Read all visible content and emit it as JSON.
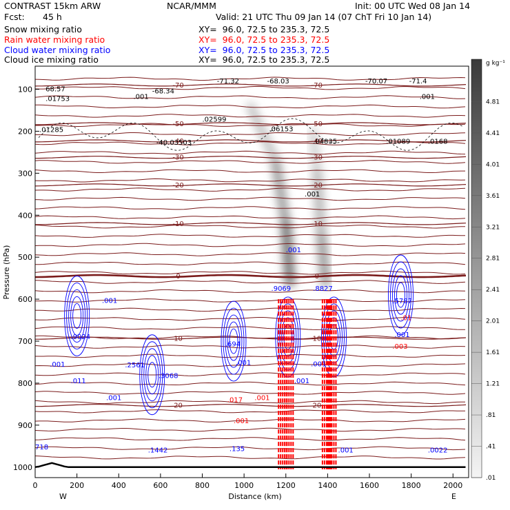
{
  "header": {
    "model": "CONTRAST 15km ARW",
    "center": "NCAR/MMM",
    "init": "Init: 00 UTC Wed 08 Jan 14",
    "fcst_label": "Fcst:",
    "fcst_value": "45 h",
    "valid": "Valid: 21 UTC Thu 09 Jan 14 (07 ChT Fri 10 Jan 14)"
  },
  "legend": [
    {
      "name": "Snow mixing ratio",
      "xy": "XY=  96.0, 72.5 to 235.3, 72.5",
      "color": "#000000"
    },
    {
      "name": "Rain water mixing ratio",
      "xy": "XY=  96.0, 72.5 to 235.3, 72.5",
      "color": "#ff0000"
    },
    {
      "name": "Cloud water mixing ratio",
      "xy": "XY=  96.0, 72.5 to 235.3, 72.5",
      "color": "#0000ff"
    },
    {
      "name": "Cloud ice mixing ratio",
      "xy": "XY=  96.0, 72.5 to 235.3, 72.5",
      "color": "#000000"
    }
  ],
  "chart_data": {
    "type": "cross-section",
    "xlabel": "Distance (km)",
    "ylabel": "Pressure (hPa)",
    "x_ticks": [
      0,
      200,
      400,
      600,
      800,
      1000,
      1200,
      1400,
      1600,
      1800,
      2000
    ],
    "y_ticks": [
      100,
      200,
      300,
      400,
      500,
      600,
      700,
      800,
      900,
      1000
    ],
    "xlim": [
      0,
      2075
    ],
    "ylim": [
      1025,
      45
    ],
    "west_label": "W",
    "east_label": "E",
    "colorbar": {
      "unit": "g kg⁻¹",
      "ticks": [
        "4.81",
        "4.41",
        "4.01",
        "3.61",
        "3.21",
        "2.81",
        "2.41",
        "2.01",
        "1.61",
        "1.21",
        ".81",
        ".41",
        ".01"
      ]
    },
    "temperature_contours": [
      {
        "label": "-70",
        "p": 90
      },
      {
        "label": "-50",
        "p": 182
      },
      {
        "label": "-40",
        "p": 223
      },
      {
        "label": "-30",
        "p": 262
      },
      {
        "label": "-20",
        "p": 328
      },
      {
        "label": "-10",
        "p": 420
      },
      {
        "label": "0",
        "p": 545
      },
      {
        "label": "10",
        "p": 693
      },
      {
        "label": "20",
        "p": 853
      }
    ],
    "snow_plumes": [
      {
        "x": [
          1030,
          1150,
          1200,
          1220
        ],
        "p": [
          140,
          270,
          420,
          560
        ],
        "peak": 4.5
      },
      {
        "x": [
          1330,
          1350,
          1370,
          1390
        ],
        "p": [
          200,
          300,
          450,
          560
        ],
        "peak": 3.0
      }
    ],
    "cloud_water_cells": [
      {
        "x": 200,
        "p": 640
      },
      {
        "x": 560,
        "p": 780
      },
      {
        "x": 950,
        "p": 700
      },
      {
        "x": 1210,
        "p": 690
      },
      {
        "x": 1430,
        "p": 690
      },
      {
        "x": 1750,
        "p": 590
      }
    ],
    "annotations": [
      {
        "text": "68.57",
        "x": 50,
        "p": 105,
        "color": "black"
      },
      {
        "text": ".01753",
        "x": 50,
        "p": 128,
        "color": "black"
      },
      {
        "text": ".01285",
        "x": 20,
        "p": 202,
        "color": "black"
      },
      {
        "text": ".001",
        "x": 470,
        "p": 123,
        "color": "black"
      },
      {
        "text": "-68.34",
        "x": 560,
        "p": 110,
        "color": "black"
      },
      {
        "text": "-71.32",
        "x": 870,
        "p": 86,
        "color": "black"
      },
      {
        "text": "-68.03",
        "x": 1110,
        "p": 86,
        "color": "black"
      },
      {
        "text": "-70.07",
        "x": 1580,
        "p": 86,
        "color": "black"
      },
      {
        "text": "-71.4",
        "x": 1790,
        "p": 86,
        "color": "black"
      },
      {
        "text": ".001",
        "x": 1840,
        "p": 123,
        "color": "black"
      },
      {
        "text": ".02599",
        "x": 800,
        "p": 177,
        "color": "black"
      },
      {
        "text": ".06153",
        "x": 1120,
        "p": 200,
        "color": "black"
      },
      {
        "text": "-40.03503",
        "x": 580,
        "p": 232,
        "color": "black"
      },
      {
        "text": ".04835",
        "x": 1330,
        "p": 230,
        "color": "black"
      },
      {
        "text": ".01089",
        "x": 1680,
        "p": 230,
        "color": "black"
      },
      {
        "text": ".0168",
        "x": 1880,
        "p": 230,
        "color": "black"
      },
      {
        "text": ".001",
        "x": 1290,
        "p": 355,
        "color": "black"
      },
      {
        "text": ".001",
        "x": 1200,
        "p": 488,
        "color": "blue"
      },
      {
        "text": ".9069",
        "x": 1130,
        "p": 580,
        "color": "blue"
      },
      {
        "text": ".8827",
        "x": 1330,
        "p": 580,
        "color": "blue"
      },
      {
        "text": ".001",
        "x": 320,
        "p": 609,
        "color": "blue"
      },
      {
        "text": ".9024",
        "x": 170,
        "p": 695,
        "color": "blue"
      },
      {
        "text": ".5787",
        "x": 1710,
        "p": 610,
        "color": "blue"
      },
      {
        "text": ".01",
        "x": 1750,
        "p": 650,
        "color": "red"
      },
      {
        "text": ".001",
        "x": 1720,
        "p": 690,
        "color": "blue"
      },
      {
        "text": ".003",
        "x": 1710,
        "p": 718,
        "color": "red"
      },
      {
        "text": ".694",
        "x": 910,
        "p": 712,
        "color": "blue"
      },
      {
        "text": ".001",
        "x": 960,
        "p": 757,
        "color": "blue"
      },
      {
        "text": ".001",
        "x": 70,
        "p": 761,
        "color": "blue"
      },
      {
        "text": ".2561",
        "x": 430,
        "p": 762,
        "color": "blue"
      },
      {
        "text": ".3068",
        "x": 590,
        "p": 788,
        "color": "blue"
      },
      {
        "text": ".011",
        "x": 170,
        "p": 800,
        "color": "blue"
      },
      {
        "text": ".001",
        "x": 340,
        "p": 840,
        "color": "blue"
      },
      {
        "text": ".001",
        "x": 1240,
        "p": 800,
        "color": "blue"
      },
      {
        "text": ".001",
        "x": 1320,
        "p": 760,
        "color": "blue"
      },
      {
        "text": ".017",
        "x": 920,
        "p": 845,
        "color": "red"
      },
      {
        "text": ".001",
        "x": 1050,
        "p": 840,
        "color": "red"
      },
      {
        "text": ".001",
        "x": 950,
        "p": 895,
        "color": "red"
      },
      {
        "text": ".1442",
        "x": 540,
        "p": 965,
        "color": "blue"
      },
      {
        "text": ".135",
        "x": 930,
        "p": 962,
        "color": "blue"
      },
      {
        "text": ".001",
        "x": 1450,
        "p": 965,
        "color": "blue"
      },
      {
        "text": ".0022",
        "x": 1880,
        "p": 965,
        "color": "blue"
      },
      {
        "text": "718",
        "x": 0,
        "p": 958,
        "color": "blue"
      }
    ]
  }
}
